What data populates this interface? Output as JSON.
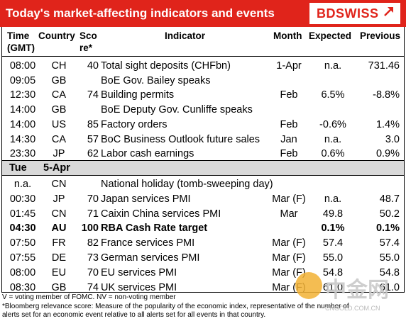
{
  "header": {
    "title": "Today's market-affecting indicators and events",
    "logo": "BDSWISS",
    "accent": "#e0241b"
  },
  "columns": {
    "time": "Time\n(GMT)",
    "time1": "Time",
    "time2": "(GMT)",
    "country": "Country",
    "score1": "Sco",
    "score2": "re*",
    "indicator": "Indicator",
    "month": "Month",
    "expected": "Expected",
    "previous": "Previous"
  },
  "rows_day1": [
    {
      "time": "08:00",
      "country": "CH",
      "score": "40",
      "indicator": "Total sight deposits (CHFbn)",
      "month": "1-Apr",
      "expected": "n.a.",
      "previous": "731.46"
    },
    {
      "time": "09:05",
      "country": "GB",
      "score": "",
      "indicator": "BoE Gov. Bailey speaks",
      "month": "",
      "expected": "",
      "previous": ""
    },
    {
      "time": "12:30",
      "country": "CA",
      "score": "74",
      "indicator": "Building permits",
      "month": "Feb",
      "expected": "6.5%",
      "previous": "-8.8%"
    },
    {
      "time": "14:00",
      "country": "GB",
      "score": "",
      "indicator": "BoE Deputy Gov. Cunliffe speaks",
      "month": "",
      "expected": "",
      "previous": ""
    },
    {
      "time": "14:00",
      "country": "US",
      "score": "85",
      "indicator": "Factory orders",
      "month": "Feb",
      "expected": "-0.6%",
      "previous": "1.4%"
    },
    {
      "time": "14:30",
      "country": "CA",
      "score": "57",
      "indicator": "BoC Business Outlook future sales",
      "month": "Jan",
      "expected": "n.a.",
      "previous": "3.0"
    },
    {
      "time": "23:30",
      "country": "JP",
      "score": "62",
      "indicator": "Labor cash earnings",
      "month": "Feb",
      "expected": "0.6%",
      "previous": "0.9%"
    }
  ],
  "separator": {
    "day": "Tue",
    "date": "5-Apr"
  },
  "rows_day2": [
    {
      "time": "n.a.",
      "country": "CN",
      "score": "",
      "indicator": "National holiday (tomb-sweeping day)",
      "month": "",
      "expected": "",
      "previous": "",
      "bold": false
    },
    {
      "time": "00:30",
      "country": "JP",
      "score": "70",
      "indicator": "Japan services PMI",
      "month": "Mar (F)",
      "expected": "n.a.",
      "previous": "48.7",
      "bold": false
    },
    {
      "time": "01:45",
      "country": "CN",
      "score": "71",
      "indicator": "Caixin China services PMI",
      "month": "Mar",
      "expected": "49.8",
      "previous": "50.2",
      "bold": false
    },
    {
      "time": "04:30",
      "country": "AU",
      "score": "100",
      "indicator": "RBA Cash Rate target",
      "month": "",
      "expected": "0.1%",
      "previous": "0.1%",
      "bold": true
    },
    {
      "time": "07:50",
      "country": "FR",
      "score": "82",
      "indicator": "France services PMI",
      "month": "Mar (F)",
      "expected": "57.4",
      "previous": "57.4",
      "bold": false
    },
    {
      "time": "07:55",
      "country": "DE",
      "score": "73",
      "indicator": "German services PMI",
      "month": "Mar (F)",
      "expected": "55.0",
      "previous": "55.0",
      "bold": false
    },
    {
      "time": "08:00",
      "country": "EU",
      "score": "70",
      "indicator": "EU services PMI",
      "month": "Mar (F)",
      "expected": "54.8",
      "previous": "54.8",
      "bold": false
    },
    {
      "time": "08:30",
      "country": "GB",
      "score": "74",
      "indicator": "UK services PMI",
      "month": "Mar (F)",
      "expected": "61.0",
      "previous": "61.0",
      "bold": false
    }
  ],
  "footnotes": {
    "line1": "V = voting member of FOMC. NV = non-voting member",
    "line2": "*Bloomberg relevance score: Measure of the popularity of the economic index, representative of the number of",
    "line3": "alerts set for an economic event relative to all alerts set for all events in that country."
  },
  "watermark": {
    "text": "中金网",
    "sub": "CNGOLD.COM.CN"
  }
}
